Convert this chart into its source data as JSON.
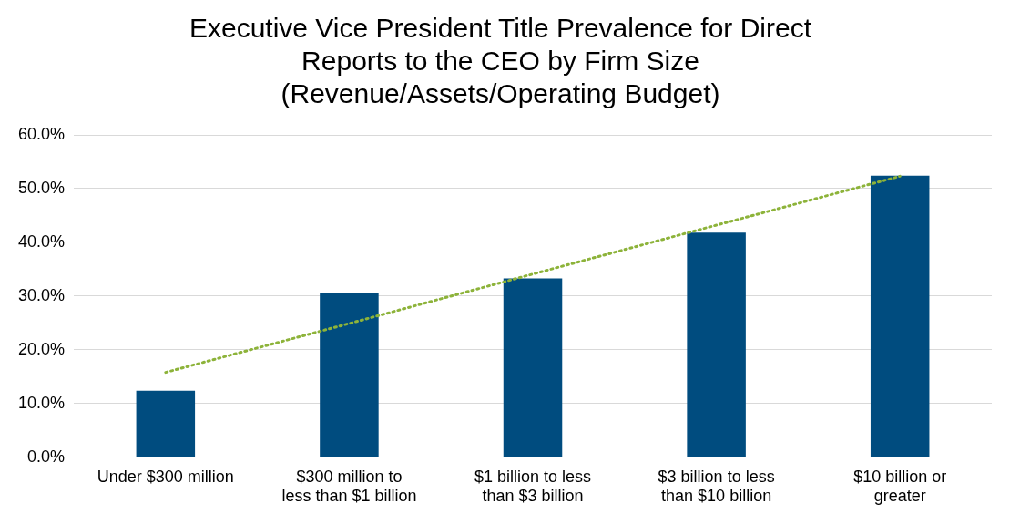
{
  "chart_data": {
    "type": "bar",
    "title": "Executive Vice President Title Prevalence for Direct\nReports to the CEO by Firm Size\n(Revenue/Assets/Operating Budget)",
    "categories": [
      "Under $300 million",
      "$300 million to less than $1 billion",
      "$1 billion to less than $3 billion",
      "$3 billion to less than $10 billion",
      "$10 billion or greater"
    ],
    "series": [
      {
        "color": "#004c7f",
        "values": [
          12.4,
          30.5,
          33.3,
          41.8,
          52.4
        ]
      },
      {
        "type": "line",
        "color": "#8db33a",
        "line_style": "dotted",
        "marker": "none",
        "x": [
          "Under $300 million",
          "$300 million to less than $1 billion",
          "$1 billion to less than $3 billion",
          "$3 billion to less than $10 billion",
          "$10 billion or greater"
        ],
        "values": [
          15.8,
          24.9,
          34.1,
          43.2,
          52.3
        ]
      }
    ],
    "ylim": [
      0,
      60
    ],
    "yticks": [
      {
        "value": 0,
        "label": "0.0%"
      },
      {
        "value": 10,
        "label": "10.0%"
      },
      {
        "value": 20,
        "label": "20.0%"
      },
      {
        "value": 30,
        "label": "30.0%"
      },
      {
        "value": 40,
        "label": "40.0%"
      },
      {
        "value": 50,
        "label": "50.0%"
      },
      {
        "value": 60,
        "label": "60.0%"
      }
    ],
    "grid": "y",
    "legend": false
  }
}
